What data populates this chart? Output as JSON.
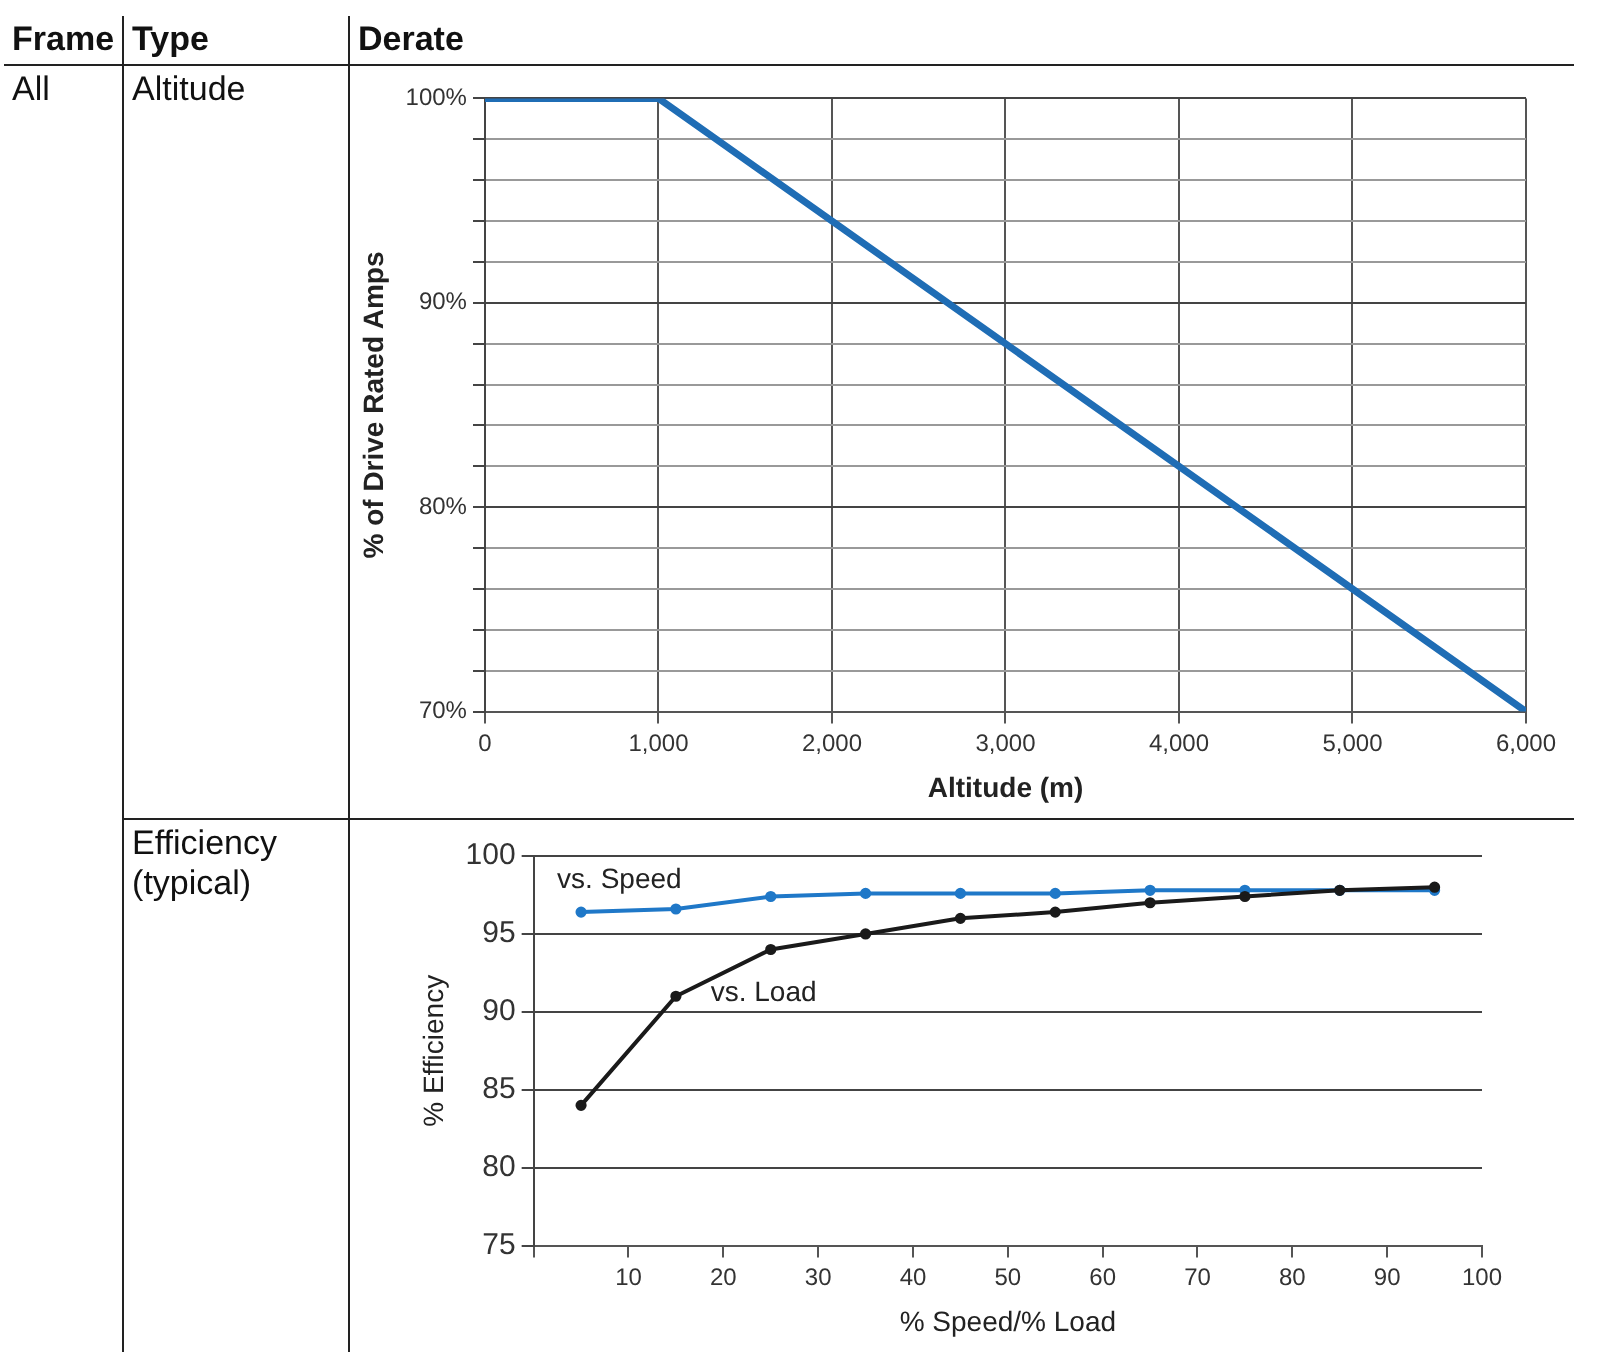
{
  "chart_data": [
    {
      "type": "line",
      "xlabel": "Altitude (m)",
      "ylabel": "% of Drive Rated Amps",
      "annotations": [
        "Frame",
        "Type",
        "Derate",
        "All",
        "Altitude"
      ],
      "x": [
        0,
        1000,
        6000
      ],
      "series": [
        {
          "color": "#1f6db5",
          "values": [
            100,
            100,
            70
          ]
        }
      ],
      "xlim": [
        0,
        6000
      ],
      "xticks": [
        0,
        {
          "value": 1000,
          "label": "1,000"
        },
        {
          "value": 2000,
          "label": "2,000"
        },
        {
          "value": 3000,
          "label": "3,000"
        },
        {
          "value": 4000,
          "label": "4,000"
        },
        {
          "value": 5000,
          "label": "5,000"
        },
        {
          "value": 6000,
          "label": "6,000"
        }
      ],
      "ylim": [
        70,
        100
      ],
      "yticks": [
        {
          "value": 70,
          "label": "70%"
        },
        {
          "value": 72,
          "label": null
        },
        {
          "value": 74,
          "label": null
        },
        {
          "value": 76,
          "label": null
        },
        {
          "value": 78,
          "label": null
        },
        {
          "value": 80,
          "label": "80%"
        },
        {
          "value": 82,
          "label": null
        },
        {
          "value": 84,
          "label": null
        },
        {
          "value": 86,
          "label": null
        },
        {
          "value": 88,
          "label": null
        },
        {
          "value": 90,
          "label": "90%"
        },
        {
          "value": 92,
          "label": null
        },
        {
          "value": 94,
          "label": null
        },
        {
          "value": 96,
          "label": null
        },
        {
          "value": 98,
          "label": null
        },
        {
          "value": 100,
          "label": "100%"
        }
      ],
      "grid": true,
      "legend": false,
      "marker": "none",
      "line_style": "solid"
    },
    {
      "type": "line",
      "xlabel": "% Speed/% Load",
      "ylabel": "% Efficiency",
      "annotations": [
        "Efficiency (typical)"
      ],
      "x": [
        5,
        15,
        25,
        35,
        45,
        55,
        65,
        75,
        85,
        95
      ],
      "series": [
        {
          "name": "vs. Speed",
          "color": "#1f78c8",
          "values": [
            96.4,
            96.6,
            97.4,
            97.6,
            97.6,
            97.6,
            97.8,
            97.8,
            97.8,
            97.8
          ]
        },
        {
          "name": "vs. Load",
          "color": "#1a1a1a",
          "values": [
            84,
            91,
            94,
            95,
            96,
            96.4,
            97,
            97.4,
            97.8,
            98
          ]
        }
      ],
      "xlim": [
        0,
        100
      ],
      "xticks": [
        {
          "value": 0,
          "label": null
        },
        10,
        20,
        30,
        40,
        50,
        60,
        70,
        80,
        90,
        100
      ],
      "ylim": [
        75,
        100
      ],
      "yticks": [
        75,
        80,
        85,
        90,
        95,
        100
      ],
      "grid": "y",
      "legend": false,
      "marker": "circle",
      "line_style": "solid"
    }
  ]
}
